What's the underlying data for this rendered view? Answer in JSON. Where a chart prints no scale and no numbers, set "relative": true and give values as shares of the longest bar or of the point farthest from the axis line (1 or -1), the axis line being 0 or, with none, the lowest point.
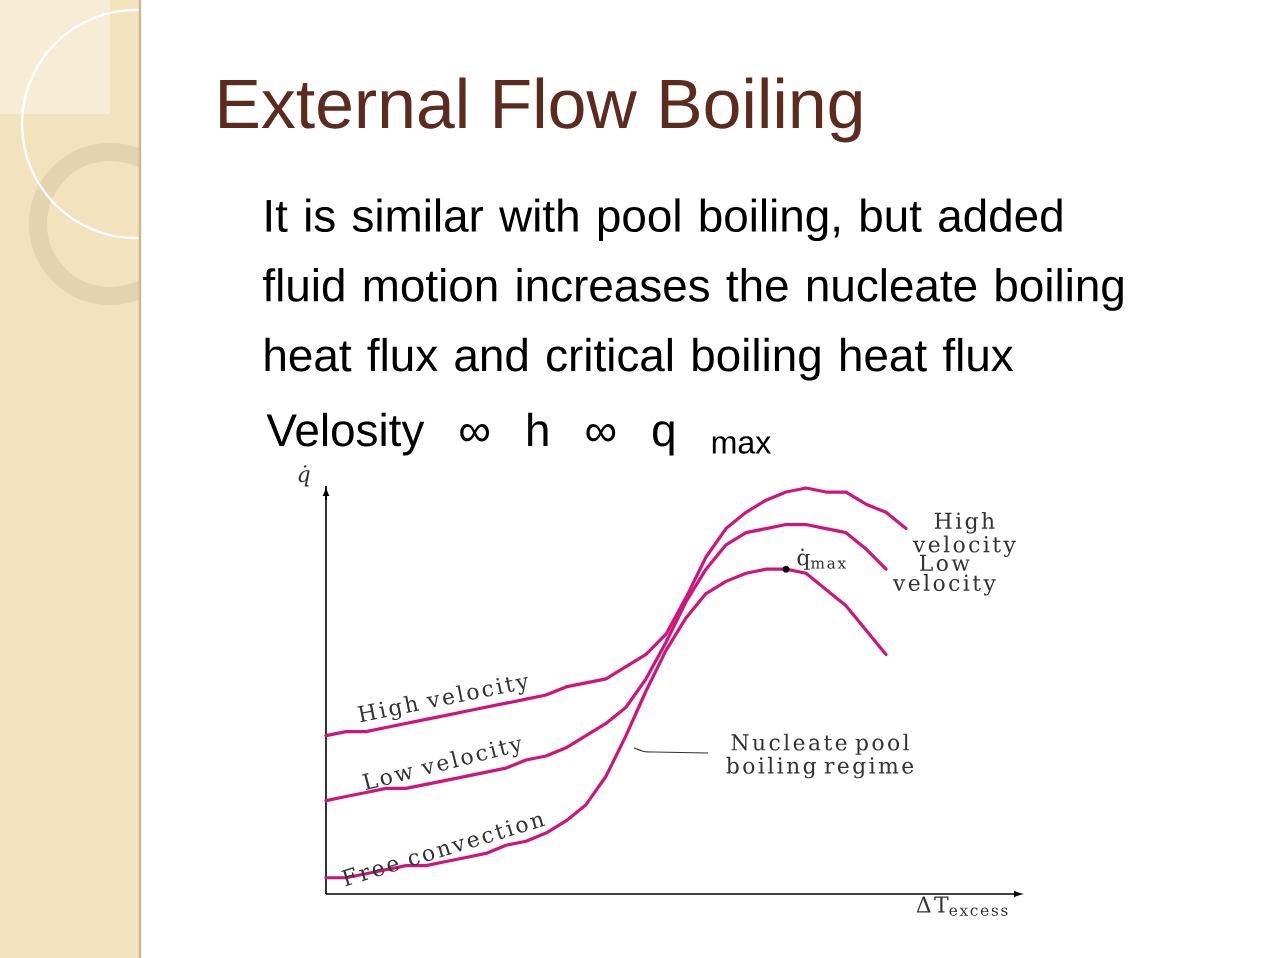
{
  "chart_data": {
    "type": "line",
    "title": "External Flow Boiling",
    "subtitle": "It is similar with pool boiling, but added fluid motion increases the nucleate boiling heat flux and critical boiling heat flux",
    "xlabel": "ΔT$_{excess}$",
    "ylabel": "q̇",
    "relative": true,
    "tick_labels": false,
    "categories": [
      null,
      null,
      null,
      null,
      null,
      null,
      null,
      null,
      null,
      null,
      null,
      null,
      null,
      null,
      null,
      null,
      null,
      null,
      null,
      null,
      null,
      null,
      null,
      null,
      null,
      null,
      null,
      null,
      null,
      null
    ],
    "series": [
      {
        "name": "High velocity",
        "color": "#d0147a",
        "values": [
          0.39,
          0.4,
          0.4,
          0.41,
          0.42,
          0.43,
          0.44,
          0.45,
          0.46,
          0.47,
          0.48,
          0.49,
          0.51,
          0.52,
          0.53,
          0.56,
          0.59,
          0.64,
          0.73,
          0.83,
          0.9,
          0.94,
          0.97,
          0.99,
          1.0,
          0.99,
          0.99,
          0.96,
          0.94,
          0.9
        ]
      },
      {
        "name": "Low velocity",
        "color": "#d0147a",
        "values": [
          0.23,
          0.24,
          0.25,
          0.26,
          0.26,
          0.27,
          0.28,
          0.29,
          0.3,
          0.31,
          0.33,
          0.34,
          0.36,
          0.39,
          0.42,
          0.46,
          0.53,
          0.62,
          0.72,
          0.8,
          0.86,
          0.89,
          0.9,
          0.91,
          0.91,
          0.9,
          0.89,
          0.85,
          0.8,
          null
        ]
      },
      {
        "name": "Free convection",
        "color": "#d0147a",
        "values": [
          0.04,
          0.04,
          0.05,
          0.06,
          0.07,
          0.07,
          0.08,
          0.09,
          0.1,
          0.12,
          0.13,
          0.15,
          0.18,
          0.22,
          0.29,
          0.39,
          0.5,
          0.6,
          0.68,
          0.74,
          0.77,
          0.79,
          0.8,
          0.8,
          0.79,
          0.75,
          0.71,
          0.65,
          0.59,
          null
        ]
      }
    ],
    "annotations": [
      "Velosity ∞ h ∞ q $_{max}$",
      "High velocity",
      "Low velocity",
      "q̇$_{max}$",
      "Nucleate pool boiling regime"
    ]
  }
}
